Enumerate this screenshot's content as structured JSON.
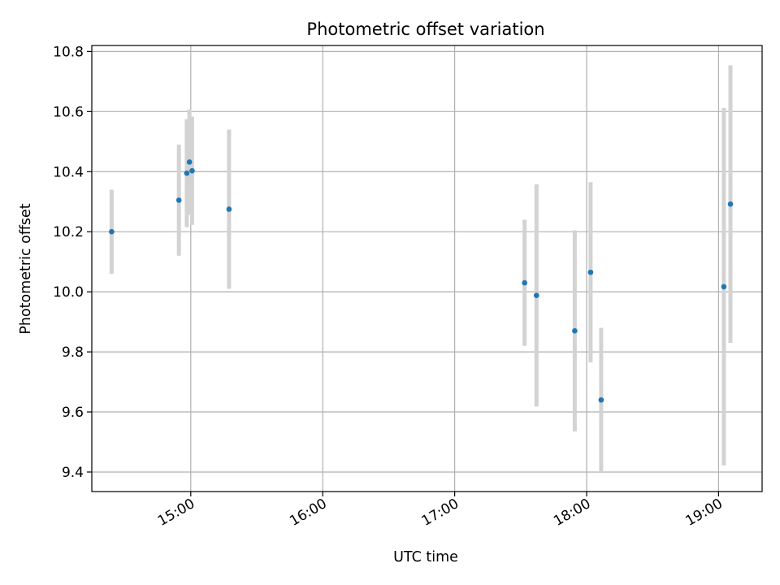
{
  "chart_data": {
    "type": "scatter",
    "title": "Photometric offset variation",
    "xlabel": "UTC time",
    "ylabel": "Photometric offset",
    "x_unit": "hours UTC",
    "xlim": [
      14.25,
      19.33
    ],
    "ylim": [
      9.335,
      10.82
    ],
    "x_ticks": [
      {
        "value": 15,
        "label": "15:00"
      },
      {
        "value": 16,
        "label": "16:00"
      },
      {
        "value": 17,
        "label": "17:00"
      },
      {
        "value": 18,
        "label": "18:00"
      },
      {
        "value": 19,
        "label": "19:00"
      }
    ],
    "y_ticks": [
      {
        "value": 9.4,
        "label": "9.4"
      },
      {
        "value": 9.6,
        "label": "9.6"
      },
      {
        "value": 9.8,
        "label": "9.8"
      },
      {
        "value": 10.0,
        "label": "10.0"
      },
      {
        "value": 10.2,
        "label": "10.2"
      },
      {
        "value": 10.4,
        "label": "10.4"
      },
      {
        "value": 10.6,
        "label": "10.6"
      },
      {
        "value": 10.8,
        "label": "10.8"
      }
    ],
    "grid": true,
    "colors": {
      "point": "#1f77b4",
      "errorbar": "#d3d3d3",
      "grid": "#b0b0b0"
    },
    "points": [
      {
        "time": "14:24",
        "x": 14.4,
        "y": 10.2,
        "err": 0.14
      },
      {
        "time": "14:55",
        "x": 14.91,
        "y": 10.305,
        "err": 0.185
      },
      {
        "time": "14:58",
        "x": 14.97,
        "y": 10.395,
        "err": 0.18
      },
      {
        "time": "14:59",
        "x": 14.99,
        "y": 10.432,
        "err": 0.175
      },
      {
        "time": "15:01",
        "x": 15.01,
        "y": 10.403,
        "err": 0.18
      },
      {
        "time": "15:18",
        "x": 15.29,
        "y": 10.275,
        "err": 0.265
      },
      {
        "time": "17:32",
        "x": 17.53,
        "y": 10.03,
        "err": 0.21
      },
      {
        "time": "17:37",
        "x": 17.62,
        "y": 9.988,
        "err": 0.37
      },
      {
        "time": "17:55",
        "x": 17.91,
        "y": 9.87,
        "err": 0.335
      },
      {
        "time": "18:02",
        "x": 18.03,
        "y": 10.065,
        "err": 0.3
      },
      {
        "time": "18:06",
        "x": 18.11,
        "y": 9.64,
        "err": 0.24
      },
      {
        "time": "19:02",
        "x": 19.04,
        "y": 10.017,
        "err": 0.595
      },
      {
        "time": "19:06",
        "x": 19.09,
        "y": 10.292,
        "err": 0.462
      }
    ]
  }
}
